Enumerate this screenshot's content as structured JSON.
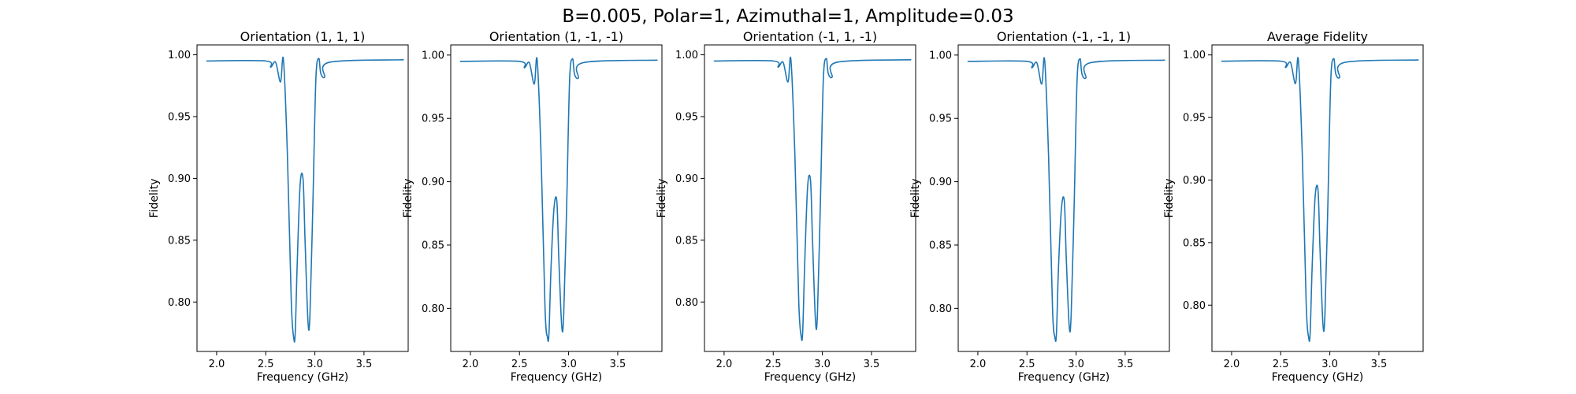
{
  "figure": {
    "suptitle": "B=0.005, Polar=1, Azimuthal=1, Amplitude=0.03",
    "line_color": "#1f77b4"
  },
  "chart_data": [
    {
      "type": "line",
      "title": "Orientation (1, 1, 1)",
      "xlabel": "Frequency (GHz)",
      "ylabel": "Fidelity",
      "xlim": [
        1.8,
        3.95
      ],
      "ylim": [
        0.76,
        1.008
      ],
      "xticks": [
        "2.0",
        "2.5",
        "3.0",
        "3.5"
      ],
      "yticks": [
        "0.80",
        "0.85",
        "0.90",
        "0.95",
        "1.00"
      ],
      "series": [
        {
          "x": [
            1.9,
            2.5,
            2.55,
            2.6,
            2.65,
            2.68,
            2.72,
            2.76,
            2.785,
            2.8,
            2.82,
            2.85,
            2.88,
            2.9,
            2.93,
            2.95,
            2.98,
            3.01,
            3.04,
            3.06,
            3.1,
            3.15,
            3.9
          ],
          "y": [
            0.995,
            0.995,
            0.99,
            0.994,
            0.978,
            0.996,
            0.92,
            0.8,
            0.771,
            0.775,
            0.83,
            0.895,
            0.899,
            0.85,
            0.784,
            0.79,
            0.88,
            0.98,
            0.997,
            0.985,
            0.982,
            0.994,
            0.996
          ]
        }
      ]
    },
    {
      "type": "line",
      "title": "Orientation (1, -1, -1)",
      "xlabel": "Frequency (GHz)",
      "ylabel": "Fidelity",
      "xlim": [
        1.8,
        3.95
      ],
      "ylim": [
        0.766,
        1.008
      ],
      "xticks": [
        "2.0",
        "2.5",
        "3.0",
        "3.5"
      ],
      "yticks": [
        "0.80",
        "0.85",
        "0.90",
        "0.95",
        "1.00"
      ],
      "series": [
        {
          "x": [
            1.9,
            2.5,
            2.55,
            2.6,
            2.65,
            2.68,
            2.72,
            2.76,
            2.785,
            2.8,
            2.82,
            2.85,
            2.88,
            2.9,
            2.93,
            2.95,
            2.98,
            3.01,
            3.04,
            3.06,
            3.1,
            3.15,
            3.9
          ],
          "y": [
            0.995,
            0.995,
            0.99,
            0.994,
            0.977,
            0.996,
            0.92,
            0.8,
            0.777,
            0.78,
            0.83,
            0.878,
            0.885,
            0.84,
            0.786,
            0.795,
            0.88,
            0.98,
            0.997,
            0.985,
            0.982,
            0.994,
            0.996
          ]
        }
      ]
    },
    {
      "type": "line",
      "title": "Orientation (-1, 1, -1)",
      "xlabel": "Frequency (GHz)",
      "ylabel": "Fidelity",
      "xlim": [
        1.8,
        3.95
      ],
      "ylim": [
        0.76,
        1.008
      ],
      "xticks": [
        "2.0",
        "2.5",
        "3.0",
        "3.5"
      ],
      "yticks": [
        "0.80",
        "0.85",
        "0.90",
        "0.95",
        "1.00"
      ],
      "series": [
        {
          "x": [
            1.9,
            2.5,
            2.55,
            2.6,
            2.65,
            2.68,
            2.72,
            2.76,
            2.785,
            2.8,
            2.82,
            2.85,
            2.88,
            2.9,
            2.93,
            2.95,
            2.98,
            3.01,
            3.04,
            3.06,
            3.1,
            3.15,
            3.9
          ],
          "y": [
            0.995,
            0.995,
            0.99,
            0.994,
            0.978,
            0.996,
            0.92,
            0.8,
            0.772,
            0.776,
            0.83,
            0.893,
            0.898,
            0.85,
            0.785,
            0.79,
            0.88,
            0.98,
            0.997,
            0.985,
            0.982,
            0.994,
            0.996
          ]
        }
      ]
    },
    {
      "type": "line",
      "title": "Orientation (-1, -1, 1)",
      "xlabel": "Frequency (GHz)",
      "ylabel": "Fidelity",
      "xlim": [
        1.8,
        3.95
      ],
      "ylim": [
        0.766,
        1.008
      ],
      "xticks": [
        "2.0",
        "2.5",
        "3.0",
        "3.5"
      ],
      "yticks": [
        "0.80",
        "0.85",
        "0.90",
        "0.95",
        "1.00"
      ],
      "series": [
        {
          "x": [
            1.9,
            2.5,
            2.55,
            2.6,
            2.65,
            2.68,
            2.72,
            2.76,
            2.785,
            2.8,
            2.82,
            2.85,
            2.88,
            2.9,
            2.93,
            2.95,
            2.98,
            3.01,
            3.04,
            3.06,
            3.1,
            3.15,
            3.9
          ],
          "y": [
            0.995,
            0.995,
            0.99,
            0.994,
            0.977,
            0.996,
            0.92,
            0.8,
            0.777,
            0.78,
            0.83,
            0.878,
            0.885,
            0.84,
            0.786,
            0.795,
            0.88,
            0.98,
            0.997,
            0.985,
            0.982,
            0.994,
            0.996
          ]
        }
      ]
    },
    {
      "type": "line",
      "title": "Average Fidelity",
      "xlabel": "Frequency (GHz)",
      "ylabel": "Fidelity",
      "xlim": [
        1.8,
        3.95
      ],
      "ylim": [
        0.763,
        1.008
      ],
      "xticks": [
        "2.0",
        "2.5",
        "3.0",
        "3.5"
      ],
      "yticks": [
        "0.80",
        "0.85",
        "0.90",
        "0.95",
        "1.00"
      ],
      "series": [
        {
          "x": [
            1.9,
            2.5,
            2.55,
            2.6,
            2.65,
            2.68,
            2.72,
            2.76,
            2.785,
            2.8,
            2.82,
            2.85,
            2.88,
            2.9,
            2.93,
            2.95,
            2.98,
            3.01,
            3.04,
            3.06,
            3.1,
            3.15,
            3.9
          ],
          "y": [
            0.995,
            0.995,
            0.99,
            0.994,
            0.977,
            0.996,
            0.92,
            0.8,
            0.774,
            0.778,
            0.83,
            0.886,
            0.892,
            0.845,
            0.785,
            0.792,
            0.88,
            0.98,
            0.997,
            0.985,
            0.982,
            0.994,
            0.996
          ]
        }
      ]
    }
  ]
}
